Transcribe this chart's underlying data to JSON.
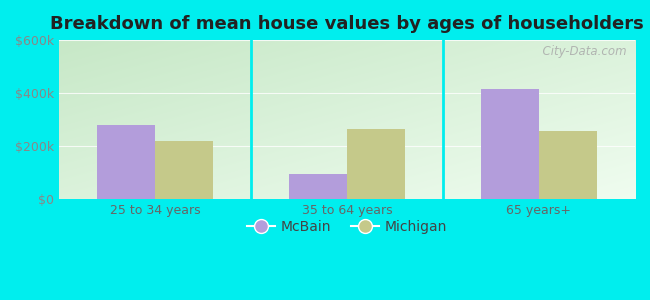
{
  "title": "Breakdown of mean house values by ages of householders",
  "categories": [
    "25 to 34 years",
    "35 to 64 years",
    "65 years+"
  ],
  "mcbain_values": [
    280000,
    95000,
    415000
  ],
  "michigan_values": [
    220000,
    265000,
    255000
  ],
  "mcbain_color": "#b39ddb",
  "michigan_color": "#c5c98a",
  "ylim": [
    0,
    600000
  ],
  "yticks": [
    0,
    200000,
    400000,
    600000
  ],
  "ytick_labels": [
    "$0",
    "$200k",
    "$400k",
    "$600k"
  ],
  "legend_labels": [
    "McBain",
    "Michigan"
  ],
  "background_color": "#00eeee",
  "watermark": "  City-Data.com",
  "bar_width": 0.3,
  "title_fontsize": 13,
  "tick_fontsize": 9,
  "legend_fontsize": 10
}
